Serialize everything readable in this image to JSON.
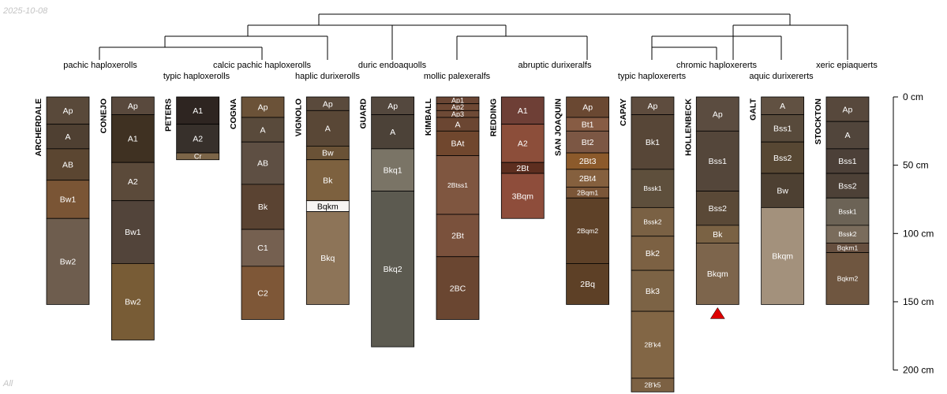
{
  "date_stamp": "2025-10-08",
  "footer_label": "All",
  "chart_data": {
    "type": "soil-profile-sketch",
    "depth_unit": "cm",
    "depth_axis": {
      "ticks": [
        0,
        50,
        100,
        150,
        200
      ],
      "labels": [
        "0 cm",
        "50 cm",
        "100 cm",
        "150 cm",
        "200 cm"
      ]
    },
    "taxa_labels": [
      "pachic haploxerolls",
      "typic haploxerolls",
      "calcic pachic haploxerolls",
      "haplic durixerolls",
      "duric endoaquolls",
      "mollic palexeralfs",
      "abruptic durixeralfs",
      "typic haploxererts",
      "chromic haploxererts",
      "aquic durixererts",
      "xeric epiaquerts"
    ],
    "profiles": [
      {
        "name": "ARCHERDALE",
        "horizons": [
          {
            "name": "Ap",
            "top": 0,
            "bottom": 20,
            "color": "#59493a"
          },
          {
            "name": "A",
            "top": 20,
            "bottom": 38,
            "color": "#4f4032"
          },
          {
            "name": "AB",
            "top": 38,
            "bottom": 61,
            "color": "#5b4631"
          },
          {
            "name": "Bw1",
            "top": 61,
            "bottom": 89,
            "color": "#7a5535"
          },
          {
            "name": "Bw2",
            "top": 89,
            "bottom": 152,
            "color": "#6e5d4e"
          }
        ]
      },
      {
        "name": "CONEJO",
        "horizons": [
          {
            "name": "Ap",
            "top": 0,
            "bottom": 13,
            "color": "#59493d"
          },
          {
            "name": "A1",
            "top": 13,
            "bottom": 48,
            "color": "#3f3122"
          },
          {
            "name": "A2",
            "top": 48,
            "bottom": 76,
            "color": "#5b4a3a"
          },
          {
            "name": "Bw1",
            "top": 76,
            "bottom": 122,
            "color": "#52443a"
          },
          {
            "name": "Bw2",
            "top": 122,
            "bottom": 178,
            "color": "#785c36"
          }
        ]
      },
      {
        "name": "PETERS",
        "horizons": [
          {
            "name": "A1",
            "top": 0,
            "bottom": 20,
            "color": "#2e2521"
          },
          {
            "name": "A2",
            "top": 20,
            "bottom": 41,
            "color": "#37302b"
          },
          {
            "name": "Cr",
            "top": 41,
            "bottom": 46,
            "color": "#7c6548"
          }
        ]
      },
      {
        "name": "COGNA",
        "horizons": [
          {
            "name": "Ap",
            "top": 0,
            "bottom": 15,
            "color": "#6b5238"
          },
          {
            "name": "A",
            "top": 15,
            "bottom": 33,
            "color": "#594a3b"
          },
          {
            "name": "AB",
            "top": 33,
            "bottom": 64,
            "color": "#5e4f43"
          },
          {
            "name": "Bk",
            "top": 64,
            "bottom": 97,
            "color": "#5a4332"
          },
          {
            "name": "C1",
            "top": 97,
            "bottom": 124,
            "color": "#756050"
          },
          {
            "name": "C2",
            "top": 124,
            "bottom": 163,
            "color": "#7e5737"
          }
        ]
      },
      {
        "name": "VIGNOLO",
        "horizons": [
          {
            "name": "Ap",
            "top": 0,
            "bottom": 10,
            "color": "#5a4a3c"
          },
          {
            "name": "A",
            "top": 10,
            "bottom": 36,
            "color": "#594736"
          },
          {
            "name": "Bw",
            "top": 36,
            "bottom": 46,
            "color": "#6a5236"
          },
          {
            "name": "Bk",
            "top": 46,
            "bottom": 76,
            "color": "#7d613f"
          },
          {
            "name": "Bqkm",
            "top": 76,
            "bottom": 84,
            "color": "#f7f5f3"
          },
          {
            "name": "Bkq",
            "top": 84,
            "bottom": 152,
            "color": "#8d7458"
          }
        ]
      },
      {
        "name": "GUARD",
        "horizons": [
          {
            "name": "Ap",
            "top": 0,
            "bottom": 13,
            "color": "#54483e"
          },
          {
            "name": "A",
            "top": 13,
            "bottom": 38,
            "color": "#4c4238"
          },
          {
            "name": "Bkq1",
            "top": 38,
            "bottom": 69,
            "color": "#7a7466"
          },
          {
            "name": "Bkq2",
            "top": 69,
            "bottom": 183,
            "color": "#5c5a50"
          }
        ]
      },
      {
        "name": "KIMBALL",
        "horizons": [
          {
            "name": "Ap1",
            "top": 0,
            "bottom": 5,
            "color": "#6a4634"
          },
          {
            "name": "Ap2",
            "top": 5,
            "bottom": 10,
            "color": "#6e4834"
          },
          {
            "name": "Ap3",
            "top": 10,
            "bottom": 15,
            "color": "#6e4a36"
          },
          {
            "name": "A",
            "top": 15,
            "bottom": 25,
            "color": "#6b4632"
          },
          {
            "name": "BAt",
            "top": 25,
            "bottom": 43,
            "color": "#70472e"
          },
          {
            "name": "2Btss1",
            "top": 43,
            "bottom": 86,
            "color": "#7f5640"
          },
          {
            "name": "2Bt",
            "top": 86,
            "bottom": 117,
            "color": "#7a513c"
          },
          {
            "name": "2BC",
            "top": 117,
            "bottom": 163,
            "color": "#6a4631"
          }
        ]
      },
      {
        "name": "REDDING",
        "horizons": [
          {
            "name": "A1",
            "top": 0,
            "bottom": 20,
            "color": "#6e3f36"
          },
          {
            "name": "A2",
            "top": 20,
            "bottom": 48,
            "color": "#8c4e3a"
          },
          {
            "name": "2Bt",
            "top": 48,
            "bottom": 56,
            "color": "#5d2e1f"
          },
          {
            "name": "3Bqm",
            "top": 56,
            "bottom": 89,
            "color": "#8e4d3b"
          }
        ]
      },
      {
        "name": "SAN JOAQUIN",
        "horizons": [
          {
            "name": "Ap",
            "top": 0,
            "bottom": 15,
            "color": "#6a4832"
          },
          {
            "name": "Bt1",
            "top": 15,
            "bottom": 25,
            "color": "#875c44"
          },
          {
            "name": "Bt2",
            "top": 25,
            "bottom": 41,
            "color": "#7c5744"
          },
          {
            "name": "2Bt3",
            "top": 41,
            "bottom": 53,
            "color": "#8c5a2b"
          },
          {
            "name": "2Bt4",
            "top": 53,
            "bottom": 66,
            "color": "#85603e"
          },
          {
            "name": "2Bqm1",
            "top": 66,
            "bottom": 74,
            "color": "#7b5638"
          },
          {
            "name": "2Bqm2",
            "top": 74,
            "bottom": 122,
            "color": "#5e4128"
          },
          {
            "name": "2Bq",
            "top": 122,
            "bottom": 152,
            "color": "#5d4026"
          }
        ]
      },
      {
        "name": "CAPAY",
        "horizons": [
          {
            "name": "Ap",
            "top": 0,
            "bottom": 13,
            "color": "#5e4c3e"
          },
          {
            "name": "Bk1",
            "top": 13,
            "bottom": 53,
            "color": "#574637"
          },
          {
            "name": "Bssk1",
            "top": 53,
            "bottom": 81,
            "color": "#5e4f3c"
          },
          {
            "name": "Bssk2",
            "top": 81,
            "bottom": 102,
            "color": "#7a6144"
          },
          {
            "name": "Bk2",
            "top": 102,
            "bottom": 127,
            "color": "#7c6143"
          },
          {
            "name": "Bk3",
            "top": 127,
            "bottom": 157,
            "color": "#7c6345"
          },
          {
            "name": "2B'k4",
            "top": 157,
            "bottom": 206,
            "color": "#826645"
          },
          {
            "name": "2B'k5",
            "top": 206,
            "bottom": 216,
            "color": "#7c6143"
          }
        ]
      },
      {
        "name": "HOLLENBECK",
        "horizons": [
          {
            "name": "Ap",
            "top": 0,
            "bottom": 25,
            "color": "#5b4c40"
          },
          {
            "name": "Bss1",
            "top": 25,
            "bottom": 69,
            "color": "#54463a"
          },
          {
            "name": "Bss2",
            "top": 69,
            "bottom": 94,
            "color": "#5a4937"
          },
          {
            "name": "Bk",
            "top": 94,
            "bottom": 107,
            "color": "#7a6244"
          },
          {
            "name": "Bkqm",
            "top": 107,
            "bottom": 152,
            "color": "#7d654c"
          }
        ],
        "bottom_marker": "triangle",
        "marker_color": "#dd0000"
      },
      {
        "name": "GALT",
        "horizons": [
          {
            "name": "A",
            "top": 0,
            "bottom": 13,
            "color": "#615142"
          },
          {
            "name": "Bss1",
            "top": 13,
            "bottom": 33,
            "color": "#584a3b"
          },
          {
            "name": "Bss2",
            "top": 33,
            "bottom": 56,
            "color": "#574733"
          },
          {
            "name": "Bw",
            "top": 56,
            "bottom": 81,
            "color": "#4d4032"
          },
          {
            "name": "Bkqm",
            "top": 81,
            "bottom": 152,
            "color": "#a3917c"
          }
        ]
      },
      {
        "name": "STOCKTON",
        "horizons": [
          {
            "name": "Ap",
            "top": 0,
            "bottom": 18,
            "color": "#57483c"
          },
          {
            "name": "A",
            "top": 18,
            "bottom": 38,
            "color": "#51453b"
          },
          {
            "name": "Bss1",
            "top": 38,
            "bottom": 56,
            "color": "#4c4038"
          },
          {
            "name": "Bss2",
            "top": 56,
            "bottom": 74,
            "color": "#4d4137"
          },
          {
            "name": "Bssk1",
            "top": 74,
            "bottom": 94,
            "color": "#6c6356"
          },
          {
            "name": "Bssk2",
            "top": 94,
            "bottom": 107,
            "color": "#7a6c5c"
          },
          {
            "name": "Bqkm1",
            "top": 107,
            "bottom": 114,
            "color": "#664f3f"
          },
          {
            "name": "Bqkm2",
            "top": 114,
            "bottom": 152,
            "color": "#6f5640"
          }
        ]
      }
    ]
  }
}
